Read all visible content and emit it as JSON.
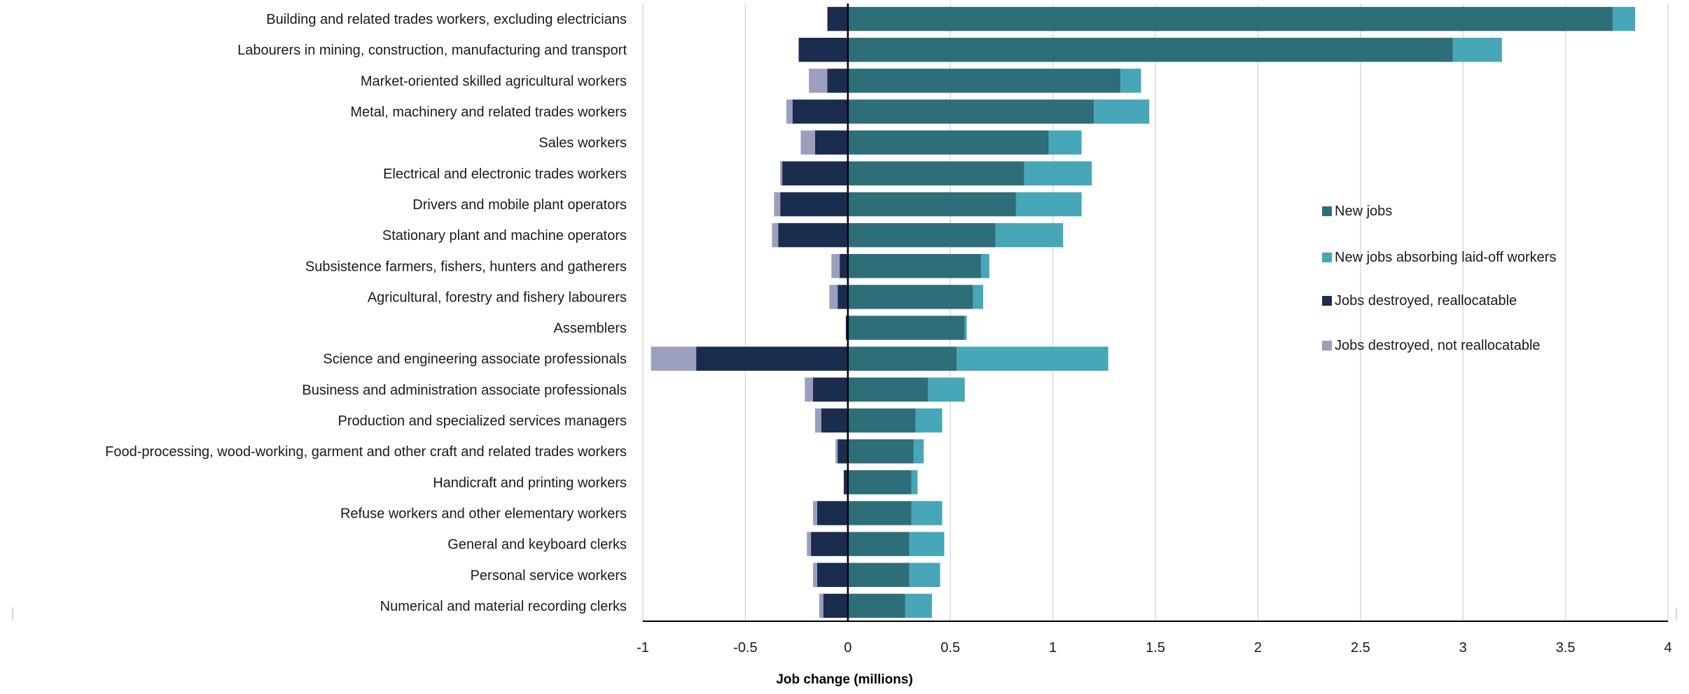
{
  "chart_data": {
    "type": "bar",
    "orientation": "horizontal",
    "stacked": true,
    "title": "",
    "xlabel": "Job change (millions)",
    "ylabel": "",
    "xlim": [
      -1,
      4
    ],
    "xticks": [
      -1,
      -0.5,
      0,
      0.5,
      1,
      1.5,
      2,
      2.5,
      3,
      3.5,
      4
    ],
    "xtick_labels": [
      "-1",
      "-0.5",
      "0",
      "0.5",
      "1",
      "1.5",
      "2",
      "2.5",
      "3",
      "3.5",
      "4"
    ],
    "grid": "vertical",
    "legend_position": "right",
    "categories": [
      "Building and related trades workers, excluding electricians",
      "Labourers in mining, construction, manufacturing and transport",
      "Market-oriented skilled agricultural workers",
      "Metal, machinery and related trades workers",
      "Sales workers",
      "Electrical and electronic trades workers",
      "Drivers and mobile plant operators",
      "Stationary plant and machine operators",
      "Subsistence farmers, fishers, hunters and gatherers",
      "Agricultural, forestry and fishery labourers",
      "Assemblers",
      "Science and engineering associate professionals",
      "Business and administration associate professionals",
      "Production and specialized services managers",
      "Food-processing, wood-working, garment and other craft and related trades workers",
      "Handicraft and printing workers",
      "Refuse workers and other elementary workers",
      "General and keyboard clerks",
      "Personal service workers",
      "Numerical and material recording clerks"
    ],
    "series": [
      {
        "name": "New jobs",
        "color": "#2e6e78",
        "values": [
          3.73,
          2.95,
          1.33,
          1.2,
          0.98,
          0.86,
          0.82,
          0.72,
          0.65,
          0.61,
          0.57,
          0.53,
          0.39,
          0.33,
          0.32,
          0.31,
          0.31,
          0.3,
          0.3,
          0.28
        ]
      },
      {
        "name": "New jobs absorbing laid-off workers",
        "color": "#47a6b8",
        "values": [
          0.11,
          0.24,
          0.1,
          0.27,
          0.16,
          0.33,
          0.32,
          0.33,
          0.04,
          0.05,
          0.01,
          0.74,
          0.18,
          0.13,
          0.05,
          0.03,
          0.15,
          0.17,
          0.15,
          0.13
        ]
      },
      {
        "name": "Jobs destroyed, reallocatable",
        "color": "#1a2d4f",
        "values": [
          -0.1,
          -0.24,
          -0.1,
          -0.27,
          -0.16,
          -0.32,
          -0.33,
          -0.34,
          -0.04,
          -0.05,
          -0.01,
          -0.74,
          -0.17,
          -0.13,
          -0.05,
          -0.02,
          -0.15,
          -0.18,
          -0.15,
          -0.12
        ]
      },
      {
        "name": "Jobs destroyed, not reallocatable",
        "color": "#9b9fbd",
        "values": [
          0,
          0,
          -0.09,
          -0.03,
          -0.07,
          -0.01,
          -0.03,
          -0.03,
          -0.04,
          -0.04,
          0,
          -0.22,
          -0.04,
          -0.03,
          -0.01,
          0,
          -0.02,
          -0.02,
          -0.02,
          -0.02
        ]
      }
    ]
  }
}
